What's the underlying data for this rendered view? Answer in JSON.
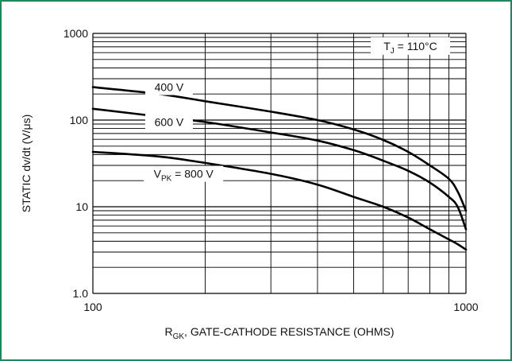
{
  "chart_data": {
    "type": "line",
    "x_scale": "log",
    "y_scale": "log",
    "xlim": [
      100,
      1000
    ],
    "ylim": [
      1,
      1000
    ],
    "grid": true,
    "x_ticks": [
      {
        "value": 100,
        "label": "100"
      },
      {
        "value": 1000,
        "label": "1000"
      }
    ],
    "y_ticks": [
      {
        "value": 1,
        "label": "1.0"
      },
      {
        "value": 10,
        "label": "10"
      },
      {
        "value": 100,
        "label": "100"
      },
      {
        "value": 1000,
        "label": "1000"
      }
    ],
    "xlabel": {
      "main": "R",
      "sub": "GK",
      "rest": ", GATE-CATHODE RESISTANCE (OHMS)"
    },
    "ylabel": "STATIC dv/dt (V/μs)",
    "annotation": {
      "pre": "T",
      "sub": "J",
      "post": " = 110°C"
    },
    "series": [
      {
        "name": "400 V",
        "label": {
          "pre": "",
          "sub": "",
          "post": "400 V",
          "at": [
            160,
            240
          ]
        },
        "x": [
          100,
          150,
          200,
          300,
          400,
          500,
          600,
          700,
          800,
          900,
          950,
          1000
        ],
        "y": [
          240,
          200,
          165,
          125,
          100,
          78,
          59,
          43,
          30,
          21,
          15,
          9
        ]
      },
      {
        "name": "600 V",
        "label": {
          "pre": "",
          "sub": "",
          "post": "600 V",
          "at": [
            160,
            95
          ]
        },
        "x": [
          100,
          150,
          200,
          300,
          400,
          500,
          600,
          700,
          800,
          900,
          950,
          1000
        ],
        "y": [
          135,
          110,
          95,
          72,
          58,
          45,
          34,
          26,
          19,
          13,
          10,
          5.5
        ]
      },
      {
        "name": "V_PK = 800 V",
        "label": {
          "pre": "V",
          "sub": "PK",
          "post": " = 800 V",
          "at": [
            175,
            24
          ]
        },
        "x": [
          100,
          150,
          200,
          300,
          400,
          500,
          600,
          700,
          800,
          900,
          950,
          1000
        ],
        "y": [
          43,
          38,
          32,
          24,
          18,
          13,
          10,
          7.5,
          5.5,
          4.2,
          3.7,
          3.2
        ]
      }
    ]
  }
}
